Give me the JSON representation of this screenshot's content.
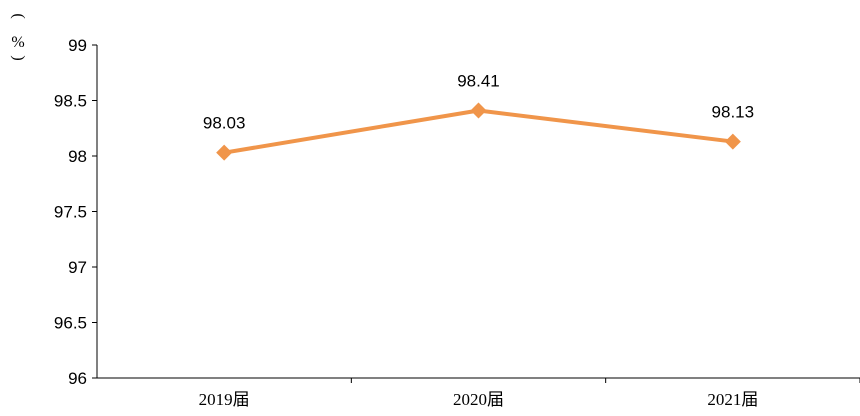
{
  "chart_data": {
    "type": "line",
    "title": "",
    "xlabel": "",
    "ylabel": "%",
    "ylabel_paren_open": "(",
    "ylabel_paren_close": ")",
    "categories": [
      "2019届",
      "2020届",
      "2021届"
    ],
    "series": [
      {
        "values": [
          98.03,
          98.41,
          98.13
        ],
        "color": "#F0954A"
      }
    ],
    "data_labels": [
      "98.03",
      "98.41",
      "98.13"
    ],
    "ylim": [
      96,
      99
    ],
    "yticks": [
      96,
      96.5,
      97,
      97.5,
      98,
      98.5,
      99
    ],
    "ytick_labels": [
      "96",
      "96.5",
      "97",
      "97.5",
      "98",
      "98.5",
      "99"
    ],
    "grid": false,
    "legend": "none",
    "marker": "diamond"
  }
}
